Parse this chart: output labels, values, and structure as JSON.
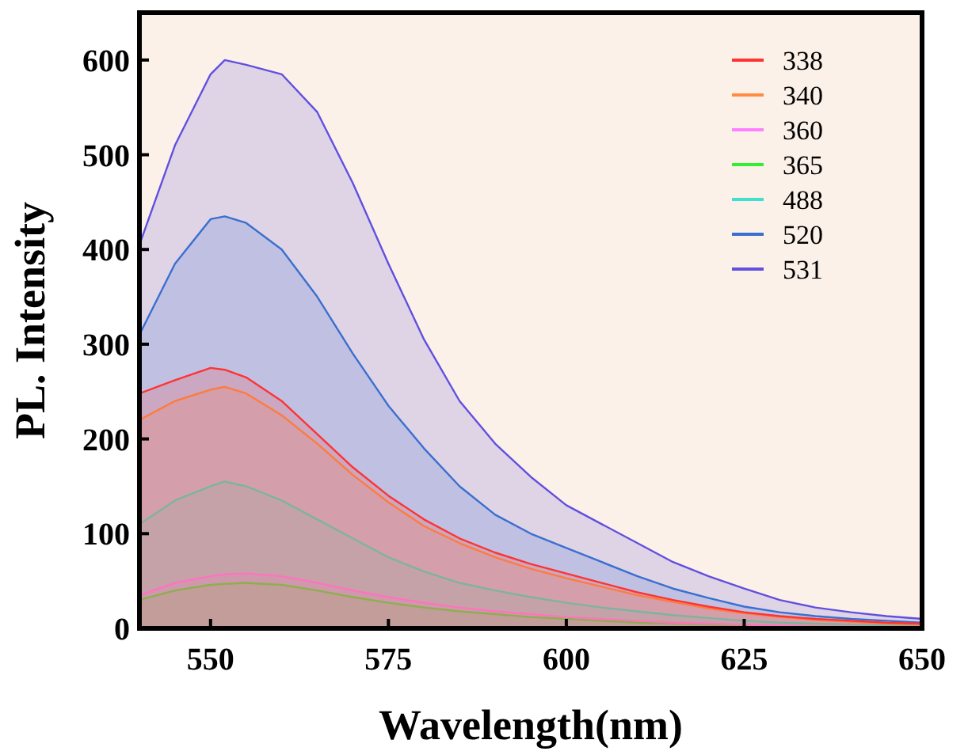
{
  "chart_data": {
    "type": "area",
    "xlabel": "Wavelength(nm)",
    "ylabel": "PL. Intensity",
    "x": [
      540,
      545,
      550,
      552,
      555,
      560,
      565,
      570,
      575,
      580,
      585,
      590,
      595,
      600,
      605,
      610,
      615,
      620,
      625,
      630,
      635,
      640,
      645,
      650
    ],
    "xlim": [
      540,
      650
    ],
    "xticks": [
      550,
      575,
      600,
      625,
      650
    ],
    "ylim": [
      0,
      650
    ],
    "yticks": [
      0,
      100,
      200,
      300,
      400,
      500,
      600
    ],
    "grid": false,
    "legend": "top right",
    "series": [
      {
        "name": "338",
        "color": "#ff3333",
        "values": [
          248,
          262,
          275,
          273,
          265,
          240,
          205,
          170,
          140,
          115,
          95,
          80,
          68,
          58,
          48,
          38,
          30,
          23,
          17,
          13,
          10,
          8,
          6,
          5
        ]
      },
      {
        "name": "340",
        "color": "#ff8c40",
        "values": [
          220,
          240,
          252,
          255,
          248,
          225,
          195,
          162,
          133,
          108,
          90,
          75,
          63,
          53,
          44,
          35,
          28,
          21,
          16,
          12,
          9,
          7,
          5,
          4
        ]
      },
      {
        "name": "360",
        "color": "#ff80ff",
        "values": [
          35,
          48,
          55,
          57,
          58,
          55,
          48,
          40,
          33,
          27,
          22,
          18,
          15,
          12,
          10,
          8,
          6,
          5,
          4,
          3,
          2,
          2,
          1,
          1
        ]
      },
      {
        "name": "365",
        "color": "#33ee33",
        "values": [
          30,
          40,
          46,
          47,
          48,
          46,
          40,
          33,
          27,
          22,
          18,
          15,
          12,
          10,
          8,
          6,
          5,
          4,
          3,
          2,
          2,
          1,
          1,
          1
        ]
      },
      {
        "name": "488",
        "color": "#40e0d0",
        "values": [
          110,
          135,
          150,
          155,
          150,
          135,
          115,
          95,
          75,
          60,
          48,
          40,
          33,
          27,
          22,
          18,
          14,
          11,
          8,
          6,
          5,
          4,
          3,
          2
        ]
      },
      {
        "name": "520",
        "color": "#3a6fd0",
        "values": [
          310,
          385,
          432,
          435,
          428,
          400,
          350,
          290,
          235,
          190,
          150,
          120,
          100,
          85,
          70,
          55,
          42,
          32,
          23,
          17,
          13,
          10,
          8,
          6
        ]
      },
      {
        "name": "531",
        "color": "#6050e0",
        "values": [
          405,
          510,
          585,
          600,
          595,
          585,
          545,
          470,
          385,
          305,
          240,
          195,
          160,
          130,
          110,
          90,
          70,
          55,
          42,
          30,
          22,
          17,
          13,
          10
        ]
      }
    ]
  }
}
